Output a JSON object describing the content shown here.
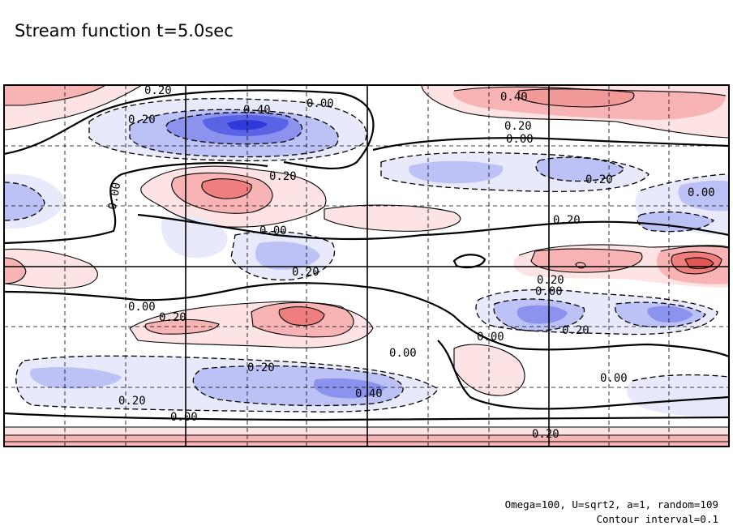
{
  "title": "Stream function t=5.0sec",
  "footer": {
    "params": "Omega=100, U=sqrt2, a=1, random=109",
    "contour_interval": "Contour interval=0.1"
  },
  "colors": {
    "positive_light": "#fde3e3",
    "positive_mid": "#f8b4b4",
    "positive_strong": "#ef7f7f",
    "negative_light": "#e8eafc",
    "negative_mid": "#bcc2f5",
    "negative_strong": "#5a62e6",
    "frame": "#000000"
  },
  "chart_data": {
    "type": "contour",
    "title": "Stream function t=5.0sec",
    "contour_interval": 0.1,
    "dashed_negative": true,
    "grid": "dashed",
    "contour_labels": [
      "0.20",
      "0.20",
      "0.40",
      "0.00",
      "0.40",
      "0.20",
      "0.00",
      "0.20",
      "0.20",
      "0.00",
      "0.00",
      "0.20",
      "0.00",
      "0.20",
      "0.20",
      "0.00",
      "0.00",
      "0.20",
      "0.00",
      "0.20",
      "0.00",
      "0.20",
      "0.40",
      "0.20",
      "0.00",
      "0.00",
      "0.20"
    ],
    "extrema": [
      {
        "sign": "negative",
        "label": "0.40",
        "location": "upper-left-center"
      },
      {
        "sign": "positive",
        "label": "0.40",
        "location": "top-right"
      },
      {
        "sign": "positive",
        "label": "0.20",
        "location": "upper-left"
      },
      {
        "sign": "negative",
        "label": "0.40",
        "location": "lower-center"
      },
      {
        "sign": "positive",
        "label": "0.20",
        "location": "center-left"
      },
      {
        "sign": "positive",
        "label": "",
        "location": "right-center"
      }
    ]
  }
}
